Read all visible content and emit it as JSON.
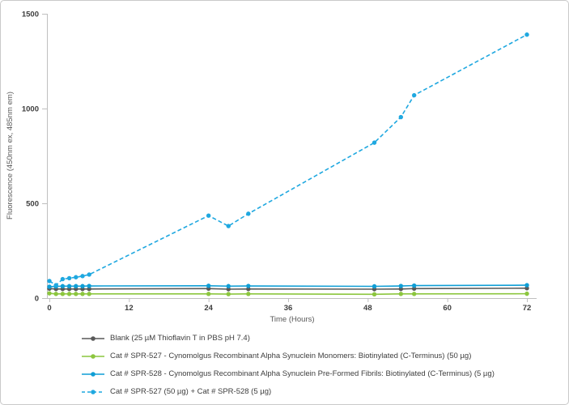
{
  "chart_data": {
    "type": "line",
    "title": "",
    "xlabel": "Time (Hours)",
    "ylabel": "Fluorescence (450nm ex, 485nm em)",
    "xlim": [
      0,
      72
    ],
    "ylim": [
      0,
      1500
    ],
    "x_ticks": [
      0,
      12,
      24,
      36,
      48,
      60,
      72
    ],
    "y_ticks": [
      0,
      500,
      1000,
      1500
    ],
    "grid": false,
    "legend_position": "bottom-left",
    "axis_color": "#bfbfbf",
    "x": [
      0,
      1,
      2,
      3,
      4,
      5,
      6,
      24,
      27,
      30,
      49,
      53,
      55,
      72
    ],
    "series": [
      {
        "name": "Blank (25 µM Thioflavin T in PBS pH 7.4)",
        "color": "#595959",
        "style": "solid",
        "values": [
          50,
          48,
          48,
          48,
          48,
          48,
          48,
          50,
          47,
          48,
          47,
          48,
          50,
          52
        ]
      },
      {
        "name": "Cat # SPR-527 - Cynomolgus Recombinant Alpha Synuclein Monomers: Biotinylated (C-Terminus) (50 µg)",
        "color": "#8CC63E",
        "style": "solid",
        "values": [
          25,
          22,
          22,
          22,
          22,
          22,
          22,
          22,
          21,
          22,
          20,
          22,
          22,
          23
        ]
      },
      {
        "name": "Cat # SPR-528 - Cynomolgus Recombinant Alpha Synuclein Pre-Formed Fibrils: Biotinylated (C-Terminus) (5 µg)",
        "color": "#0F9ED5",
        "style": "solid",
        "values": [
          60,
          62,
          63,
          63,
          63,
          63,
          64,
          65,
          63,
          64,
          62,
          64,
          66,
          68
        ]
      },
      {
        "name": "Cat # SPR-527 (50 µg) + Cat # SPR-528 (5 µg)",
        "color": "#1FA8E0",
        "style": "dashed",
        "values": [
          90,
          68,
          100,
          105,
          110,
          116,
          124,
          435,
          380,
          445,
          820,
          955,
          1070,
          1390
        ]
      }
    ]
  }
}
